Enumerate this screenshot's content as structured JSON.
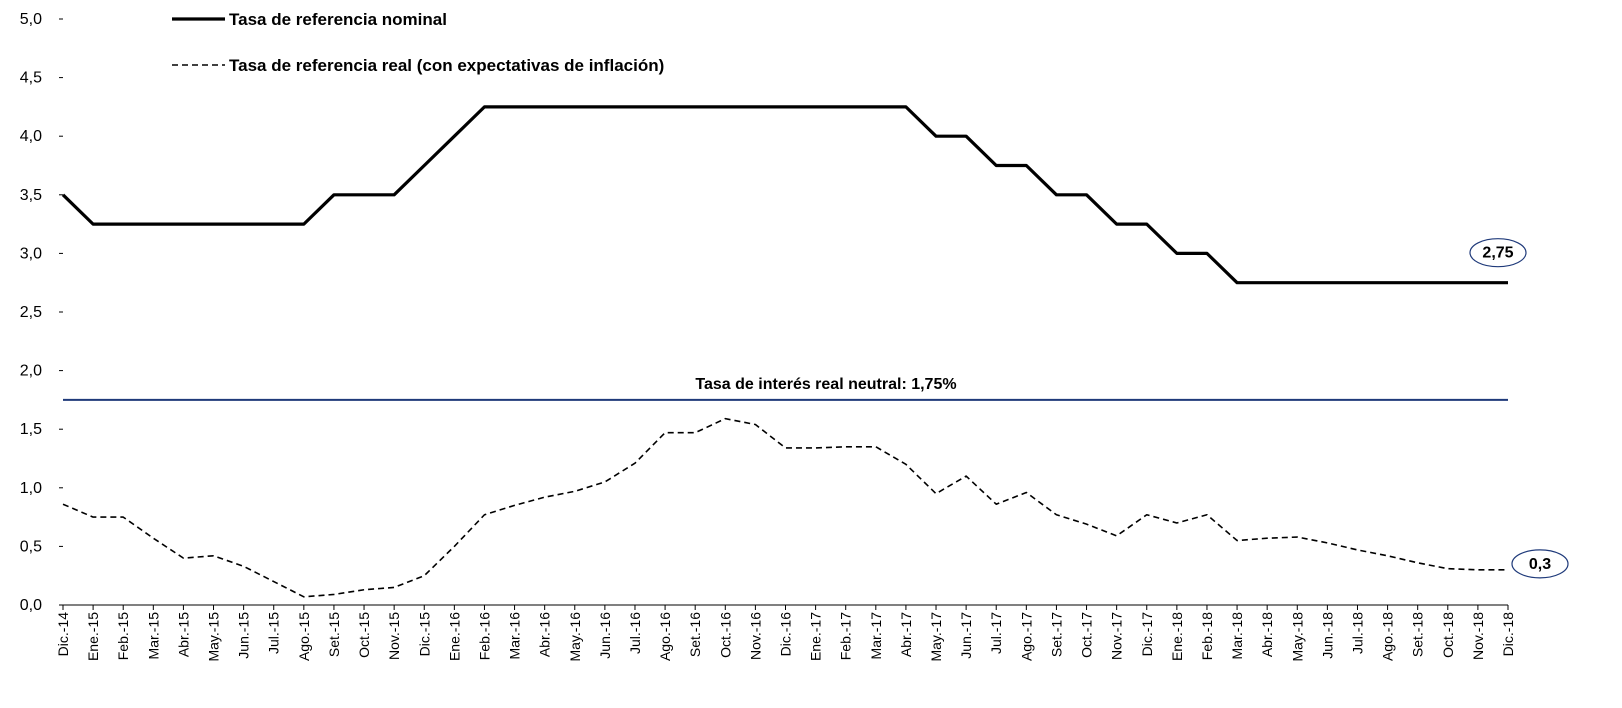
{
  "chart_data": {
    "type": "line",
    "categories": [
      "Dic.-14",
      "Ene.-15",
      "Feb.-15",
      "Mar.-15",
      "Abr.-15",
      "May.-15",
      "Jun.-15",
      "Jul.-15",
      "Ago.-15",
      "Set.-15",
      "Oct.-15",
      "Nov.-15",
      "Dic.-15",
      "Ene.-16",
      "Feb.-16",
      "Mar.-16",
      "Abr.-16",
      "May.-16",
      "Jun.-16",
      "Jul.-16",
      "Ago.-16",
      "Set.-16",
      "Oct.-16",
      "Nov.-16",
      "Dic.-16",
      "Ene.-17",
      "Feb.-17",
      "Mar.-17",
      "Abr.-17",
      "May.-17",
      "Jun.-17",
      "Jul.-17",
      "Ago.-17",
      "Set.-17",
      "Oct.-17",
      "Nov.-17",
      "Dic.-17",
      "Ene.-18",
      "Feb.-18",
      "Mar.-18",
      "Abr.-18",
      "May.-18",
      "Jun.-18",
      "Jul.-18",
      "Ago.-18",
      "Set.-18",
      "Oct.-18",
      "Nov.-18",
      "Dic.-18"
    ],
    "series": [
      {
        "name": "Tasa de referencia nominal",
        "color": "#000000",
        "line_style": "solid",
        "end_label": "2,75",
        "values": [
          3.5,
          3.25,
          3.25,
          3.25,
          3.25,
          3.25,
          3.25,
          3.25,
          3.25,
          3.5,
          3.5,
          3.5,
          3.75,
          4.0,
          4.25,
          4.25,
          4.25,
          4.25,
          4.25,
          4.25,
          4.25,
          4.25,
          4.25,
          4.25,
          4.25,
          4.25,
          4.25,
          4.25,
          4.25,
          4.0,
          4.0,
          3.75,
          3.75,
          3.5,
          3.5,
          3.25,
          3.25,
          3.0,
          3.0,
          2.75,
          2.75,
          2.75,
          2.75,
          2.75,
          2.75,
          2.75,
          2.75,
          2.75,
          2.75
        ]
      },
      {
        "name": "Tasa de referencia real (con expectativas de inflación)",
        "color": "#000000",
        "line_style": "dashed",
        "end_label": "0,3",
        "values": [
          0.86,
          0.75,
          0.75,
          0.57,
          0.4,
          0.42,
          0.33,
          0.2,
          0.07,
          0.09,
          0.13,
          0.15,
          0.25,
          0.5,
          0.77,
          0.85,
          0.92,
          0.97,
          1.05,
          1.21,
          1.47,
          1.47,
          1.59,
          1.54,
          1.34,
          1.34,
          1.35,
          1.35,
          1.2,
          0.95,
          1.1,
          0.86,
          0.96,
          0.77,
          0.69,
          0.59,
          0.77,
          0.7,
          0.77,
          0.55,
          0.57,
          0.58,
          0.53,
          0.47,
          0.42,
          0.36,
          0.31,
          0.3,
          0.3
        ]
      }
    ],
    "reference_line": {
      "value": 1.75,
      "label": "Tasa de interés real neutral: 1,75%",
      "color": "#1f3a7a"
    },
    "ylim": [
      0,
      5
    ],
    "yticks": [
      {
        "value": 0,
        "label": "0,0"
      },
      {
        "value": 0.5,
        "label": "0,5"
      },
      {
        "value": 1,
        "label": "1,0"
      },
      {
        "value": 1.5,
        "label": "1,5"
      },
      {
        "value": 2,
        "label": "2,0"
      },
      {
        "value": 2.5,
        "label": "2,5"
      },
      {
        "value": 3,
        "label": "3,0"
      },
      {
        "value": 3.5,
        "label": "3,5"
      },
      {
        "value": 4,
        "label": "4,0"
      },
      {
        "value": 4.5,
        "label": "4,5"
      },
      {
        "value": 5,
        "label": "5,0"
      }
    ],
    "legend": "top-left",
    "grid": false
  }
}
